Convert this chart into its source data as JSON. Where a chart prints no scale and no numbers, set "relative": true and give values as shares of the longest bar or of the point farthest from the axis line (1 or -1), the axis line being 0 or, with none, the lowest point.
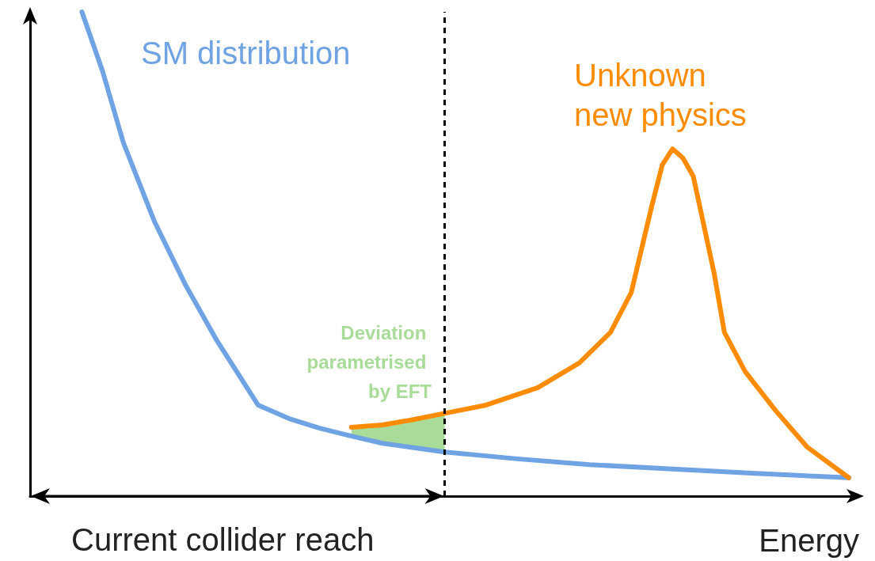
{
  "chart_data": {
    "type": "line",
    "relative": true,
    "xlabel": "Energy",
    "grid": false,
    "legend": false,
    "marker": "none",
    "categories": [
      null,
      null,
      null,
      null,
      null,
      null,
      null,
      null,
      null,
      null,
      null,
      null,
      null,
      null,
      null,
      null,
      null,
      null,
      null,
      null,
      null,
      null,
      null,
      null,
      null,
      null,
      null,
      null,
      null,
      null,
      null,
      null,
      null,
      null,
      null,
      null,
      null,
      null,
      null,
      null,
      null,
      null,
      null,
      null,
      null,
      null,
      null,
      null,
      null,
      null,
      null,
      null,
      null,
      null,
      null,
      null,
      null,
      null,
      null,
      null,
      null,
      null,
      null,
      null,
      null,
      null,
      null,
      null,
      null,
      null,
      null,
      null,
      null,
      null,
      null,
      null,
      null,
      null,
      null,
      null,
      null
    ],
    "annotations": [
      "Current collider reach"
    ],
    "series": [
      {
        "name": "SM distribution",
        "color": "#6fa3e3",
        "values": [
          null,
          null,
          null,
          null,
          null,
          1.0,
          null,
          0.877,
          null,
          0.73,
          null,
          null,
          0.567,
          null,
          null,
          0.436,
          null,
          null,
          0.322,
          null,
          null,
          null,
          0.188,
          null,
          null,
          0.16,
          null,
          null,
          0.14,
          null,
          null,
          0.124,
          null,
          null,
          0.109,
          null,
          null,
          0.1,
          null,
          null,
          0.091,
          null,
          null,
          null,
          null,
          null,
          null,
          0.077,
          null,
          null,
          null,
          null,
          null,
          null,
          0.065,
          null,
          null,
          null,
          null,
          null,
          null,
          null,
          0.056,
          null,
          null,
          null,
          null,
          null,
          null,
          null,
          0.047,
          null,
          null,
          null,
          null,
          null,
          null,
          null,
          null,
          0.038,
          null
        ]
      },
      {
        "name": "Unknown new physics",
        "color": "#ff8c00",
        "values": [
          null,
          null,
          null,
          null,
          null,
          null,
          null,
          null,
          null,
          null,
          null,
          null,
          null,
          null,
          null,
          null,
          null,
          null,
          null,
          null,
          null,
          null,
          null,
          null,
          null,
          null,
          null,
          null,
          null,
          null,
          null,
          0.142,
          null,
          null,
          0.147,
          null,
          null,
          0.158,
          null,
          null,
          0.171,
          null,
          null,
          null,
          0.188,
          null,
          null,
          null,
          null,
          0.224,
          null,
          null,
          null,
          0.275,
          null,
          null,
          0.338,
          null,
          0.42,
          null,
          0.6,
          0.684,
          0.717,
          0.698,
          0.66,
          null,
          0.461,
          0.338,
          null,
          0.257,
          null,
          null,
          0.175,
          null,
          null,
          0.101,
          null,
          null,
          null,
          0.038,
          null
        ]
      },
      {
        "type": "area",
        "name": "Deviation parametrised by EFT",
        "color": "#a8dc98",
        "values": [
          null,
          null,
          null,
          null,
          null,
          null,
          null,
          null,
          null,
          null,
          null,
          null,
          null,
          null,
          null,
          null,
          null,
          null,
          null,
          null,
          null,
          null,
          null,
          null,
          null,
          null,
          null,
          null,
          null,
          null,
          null,
          0.142,
          null,
          null,
          0.147,
          null,
          null,
          0.158,
          null,
          null,
          0.171,
          null,
          null,
          null,
          null,
          null,
          null,
          null,
          null,
          null,
          null,
          null,
          null,
          null,
          null,
          null,
          null,
          null,
          null,
          null,
          null,
          null,
          null,
          null,
          null,
          null,
          null,
          null,
          null,
          null,
          null,
          null,
          null,
          null,
          null,
          null,
          null,
          null,
          null,
          null,
          null
        ]
      }
    ]
  }
}
